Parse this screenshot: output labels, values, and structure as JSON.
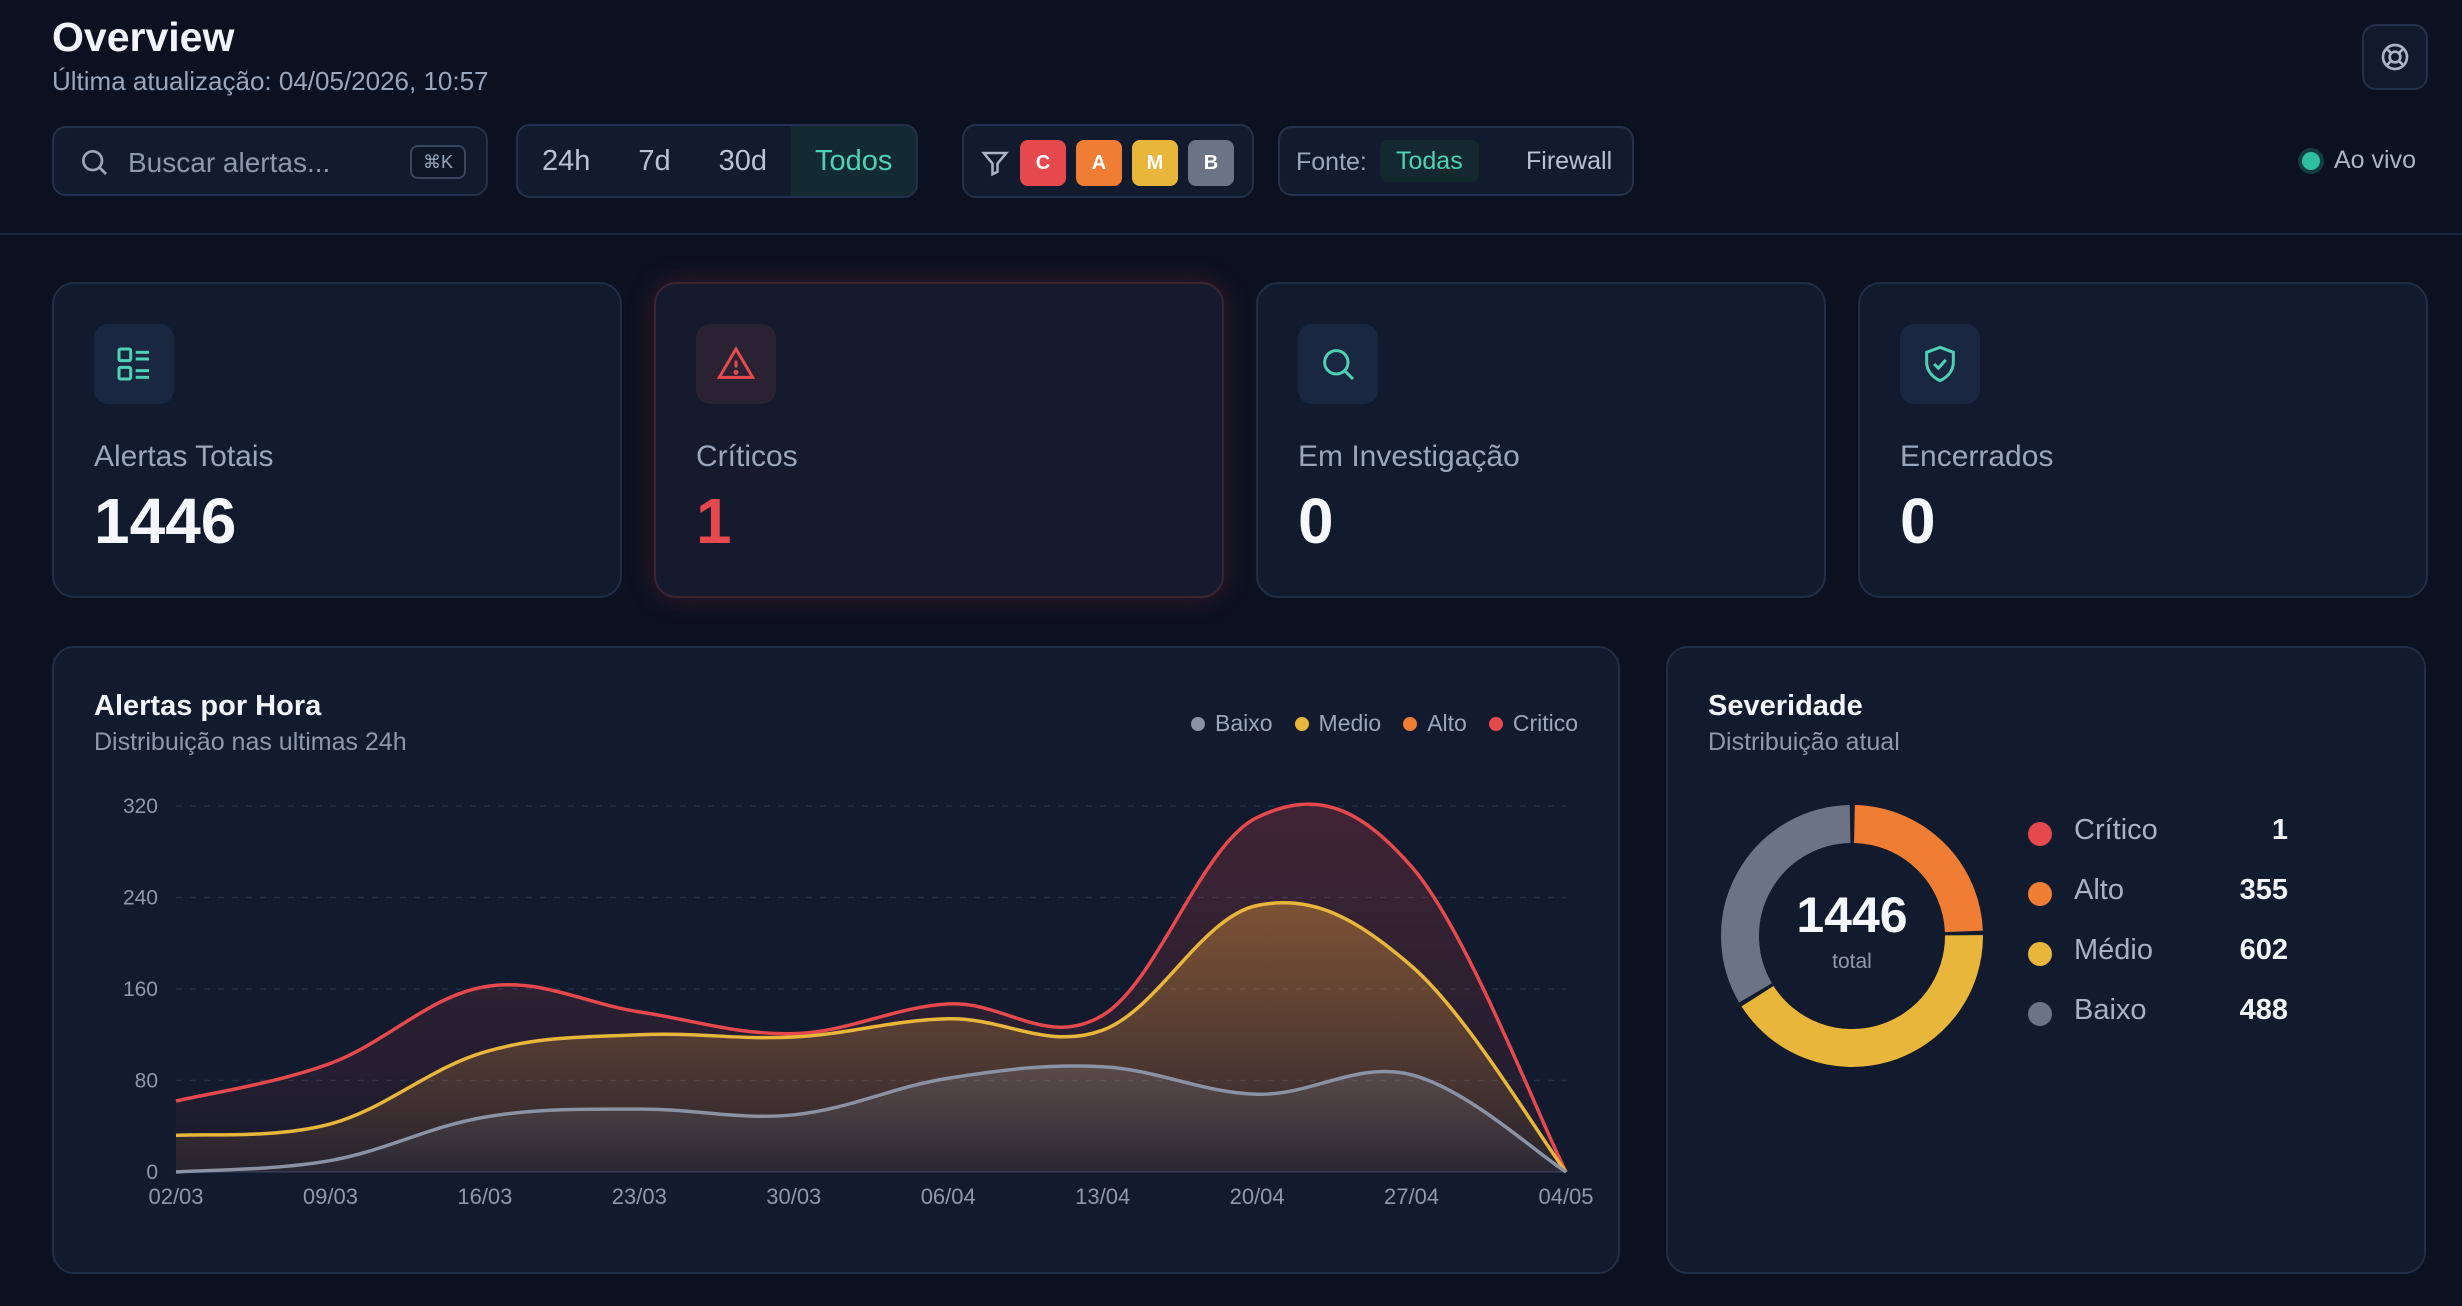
{
  "header": {
    "title": "Overview",
    "last_update": "Última atualização: 04/05/2026, 10:57",
    "help_icon": "lifebuoy-icon"
  },
  "toolbar": {
    "search": {
      "placeholder": "Buscar alertas...",
      "value": "",
      "shortcut": "⌘K"
    },
    "time_range": {
      "options": [
        "24h",
        "7d",
        "30d",
        "Todos"
      ],
      "selected": "Todos"
    },
    "severity_filter": {
      "chips": [
        {
          "label": "C",
          "color": "#e5484d"
        },
        {
          "label": "A",
          "color": "#ef7d33"
        },
        {
          "label": "M",
          "color": "#e8b63a"
        },
        {
          "label": "B",
          "color": "#6b7385"
        }
      ]
    },
    "source": {
      "label": "Fonte:",
      "options": [
        "Todas",
        "Firewall"
      ],
      "selected": "Todas"
    },
    "live_label": "Ao vivo"
  },
  "stats": [
    {
      "label": "Alertas Totais",
      "value": "1446",
      "icon": "list-icon"
    },
    {
      "label": "Críticos",
      "value": "1",
      "icon": "warning-triangle-icon"
    },
    {
      "label": "Em Investigação",
      "value": "0",
      "icon": "search-icon"
    },
    {
      "label": "Encerrados",
      "value": "0",
      "icon": "shield-check-icon"
    }
  ],
  "hourly_panel": {
    "title": "Alertas por Hora",
    "subtitle": "Distribuição nas ultimas 24h"
  },
  "severity_panel": {
    "title": "Severidade",
    "subtitle": "Distribuição atual",
    "total": "1446",
    "total_label": "total",
    "items": [
      {
        "name": "Crítico",
        "value": 1,
        "color": "#e5484d"
      },
      {
        "name": "Alto",
        "value": 355,
        "color": "#ef7d33"
      },
      {
        "name": "Médio",
        "value": 602,
        "color": "#e8b63a"
      },
      {
        "name": "Baixo",
        "value": 488,
        "color": "#6b7385"
      }
    ]
  },
  "chart_data": [
    {
      "type": "area",
      "stacked": true,
      "x_ticks": [
        "02/03",
        "09/03",
        "16/03",
        "23/03",
        "30/03",
        "06/04",
        "13/04",
        "20/04",
        "27/04",
        "04/05"
      ],
      "ylim": [
        0,
        320
      ],
      "y_ticks": [
        0,
        80,
        160,
        240,
        320
      ],
      "grid": true,
      "legend_placement": "top-right",
      "series": [
        {
          "name": "Baixo",
          "color": "#8a92a3",
          "values": [
            0,
            10,
            48,
            55,
            50,
            82,
            92,
            68,
            85,
            0
          ]
        },
        {
          "name": "Medio",
          "color": "#e8b63a",
          "values": [
            32,
            32,
            57,
            65,
            68,
            52,
            32,
            165,
            95,
            0
          ]
        },
        {
          "name": "Alto",
          "color": "#ef7d33",
          "values": [
            0,
            0,
            0,
            0,
            0,
            0,
            0,
            0,
            0,
            0
          ]
        },
        {
          "name": "Critico",
          "color": "#e5484d",
          "values": [
            30,
            53,
            57,
            20,
            3,
            13,
            13,
            77,
            87,
            0
          ]
        }
      ]
    },
    {
      "type": "pie",
      "donut": true,
      "labels": [
        "Crítico",
        "Alto",
        "Médio",
        "Baixo"
      ],
      "values": [
        1,
        355,
        602,
        488
      ]
    }
  ]
}
